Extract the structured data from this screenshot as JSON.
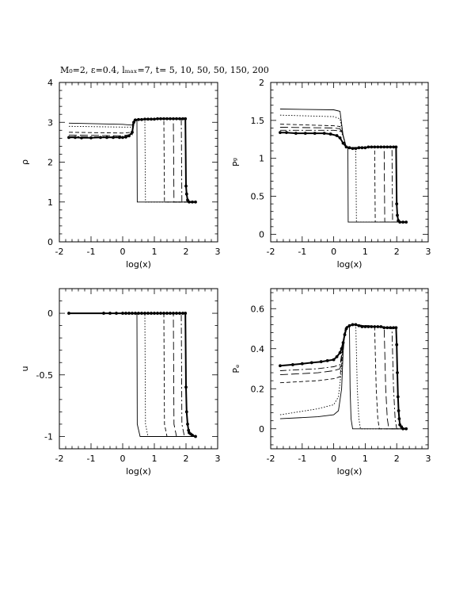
{
  "figure": {
    "title": "M₀=2, ε=0.4, lₘₐₓ=7, t= 5, 10, 50, 50, 150, 200"
  },
  "chart_data": [
    {
      "type": "line",
      "xlabel": "log(x)",
      "ylabel": "ρ",
      "xlim": [
        -2,
        3
      ],
      "ylim": [
        0,
        4
      ],
      "xticks": [
        -2,
        -1,
        0,
        1,
        2,
        3
      ],
      "yticks": [
        0,
        1,
        2,
        3,
        4
      ],
      "grid": false,
      "series": [
        {
          "style": "solid",
          "x": [
            -1.7,
            0.0,
            0.3,
            0.36,
            0.42,
            0.45,
            0.46,
            2.0,
            2.3
          ],
          "y": [
            2.98,
            2.95,
            2.93,
            3.05,
            3.06,
            3.06,
            1.0,
            1.0,
            1.0
          ]
        },
        {
          "style": "dotted",
          "x": [
            -1.7,
            0.0,
            0.3,
            0.36,
            0.6,
            0.7,
            0.72,
            2.0,
            2.3
          ],
          "y": [
            2.9,
            2.88,
            2.88,
            3.05,
            3.07,
            3.07,
            1.0,
            1.0,
            1.0
          ]
        },
        {
          "style": "dashed",
          "x": [
            -1.7,
            0.0,
            0.3,
            0.36,
            1.2,
            1.3,
            1.32,
            2.0,
            2.3
          ],
          "y": [
            2.75,
            2.73,
            2.75,
            3.06,
            3.08,
            3.08,
            1.0,
            1.0,
            1.0
          ]
        },
        {
          "style": "longdash",
          "x": [
            -1.7,
            0.0,
            0.3,
            0.36,
            1.5,
            1.6,
            1.62,
            2.0,
            2.3
          ],
          "y": [
            2.68,
            2.66,
            2.7,
            3.06,
            3.09,
            3.09,
            1.0,
            1.0,
            1.0
          ]
        },
        {
          "style": "dashdot",
          "x": [
            -1.7,
            0.0,
            0.3,
            0.36,
            1.75,
            1.85,
            1.87,
            2.0,
            2.3
          ],
          "y": [
            2.64,
            2.63,
            2.68,
            3.07,
            3.09,
            3.09,
            1.0,
            1.0,
            1.0
          ]
        },
        {
          "style": "points",
          "x": [
            -1.7,
            -1.5,
            -1.3,
            -1.0,
            -0.7,
            -0.5,
            -0.3,
            -0.1,
            0.0,
            0.1,
            0.2,
            0.3,
            0.35,
            0.4,
            0.5,
            0.6,
            0.7,
            0.8,
            0.9,
            1.0,
            1.1,
            1.2,
            1.3,
            1.4,
            1.5,
            1.6,
            1.7,
            1.8,
            1.9,
            1.98,
            2.0,
            2.02,
            2.05,
            2.1,
            2.2,
            2.3
          ],
          "y": [
            2.62,
            2.62,
            2.61,
            2.61,
            2.62,
            2.62,
            2.62,
            2.62,
            2.62,
            2.63,
            2.66,
            2.75,
            3.0,
            3.06,
            3.07,
            3.07,
            3.08,
            3.08,
            3.08,
            3.08,
            3.09,
            3.09,
            3.09,
            3.09,
            3.09,
            3.09,
            3.09,
            3.09,
            3.09,
            3.09,
            1.4,
            1.2,
            1.05,
            1.0,
            1.0,
            1.0
          ]
        }
      ]
    },
    {
      "type": "line",
      "xlabel": "log(x)",
      "ylabel": "Pᵍ",
      "xlim": [
        -2,
        3
      ],
      "ylim": [
        -0.1,
        2
      ],
      "xticks": [
        -2,
        -1,
        0,
        1,
        2,
        3
      ],
      "yticks": [
        0,
        0.5,
        1,
        1.5,
        2
      ],
      "grid": false,
      "series": [
        {
          "style": "solid",
          "x": [
            -1.7,
            0.0,
            0.2,
            0.3,
            0.4,
            0.45,
            0.46,
            2.0,
            2.3
          ],
          "y": [
            1.65,
            1.64,
            1.62,
            1.3,
            1.15,
            1.15,
            0.16,
            0.16,
            0.16
          ]
        },
        {
          "style": "dotted",
          "x": [
            -1.7,
            0.0,
            0.2,
            0.3,
            0.4,
            0.7,
            0.72,
            2.0,
            2.3
          ],
          "y": [
            1.57,
            1.55,
            1.52,
            1.3,
            1.14,
            1.14,
            0.16,
            0.16,
            0.16
          ]
        },
        {
          "style": "dashed",
          "x": [
            -1.7,
            0.0,
            0.2,
            0.3,
            0.4,
            1.3,
            1.32,
            2.0,
            2.3
          ],
          "y": [
            1.45,
            1.43,
            1.42,
            1.3,
            1.14,
            1.15,
            0.16,
            0.16,
            0.16
          ]
        },
        {
          "style": "longdash",
          "x": [
            -1.7,
            0.0,
            0.2,
            0.3,
            0.4,
            1.6,
            1.62,
            2.0,
            2.3
          ],
          "y": [
            1.41,
            1.4,
            1.39,
            1.3,
            1.14,
            1.15,
            0.16,
            0.16,
            0.16
          ]
        },
        {
          "style": "dashdot",
          "x": [
            -1.7,
            0.0,
            0.2,
            0.3,
            0.4,
            1.85,
            1.87,
            2.0,
            2.3
          ],
          "y": [
            1.37,
            1.37,
            1.36,
            1.3,
            1.14,
            1.15,
            0.16,
            0.16,
            0.16
          ]
        },
        {
          "style": "points",
          "x": [
            -1.7,
            -1.5,
            -1.2,
            -0.9,
            -0.6,
            -0.3,
            -0.1,
            0.1,
            0.2,
            0.3,
            0.4,
            0.5,
            0.6,
            0.7,
            0.8,
            0.9,
            1.0,
            1.1,
            1.2,
            1.3,
            1.4,
            1.5,
            1.6,
            1.7,
            1.8,
            1.9,
            1.98,
            2.0,
            2.02,
            2.05,
            2.1,
            2.2,
            2.3
          ],
          "y": [
            1.34,
            1.34,
            1.33,
            1.33,
            1.33,
            1.33,
            1.32,
            1.3,
            1.27,
            1.2,
            1.15,
            1.14,
            1.13,
            1.13,
            1.14,
            1.14,
            1.14,
            1.15,
            1.15,
            1.15,
            1.15,
            1.15,
            1.15,
            1.15,
            1.15,
            1.15,
            1.15,
            0.4,
            0.25,
            0.18,
            0.16,
            0.16,
            0.16
          ]
        }
      ]
    },
    {
      "type": "line",
      "xlabel": "log(x)",
      "ylabel": "u",
      "xlim": [
        -2,
        3
      ],
      "ylim": [
        -1.1,
        0.2
      ],
      "xticks": [
        -2,
        -1,
        0,
        1,
        2,
        3
      ],
      "yticks": [
        -1,
        -0.5,
        0
      ],
      "grid": false,
      "series": [
        {
          "style": "solid",
          "x": [
            -1.7,
            0.3,
            0.45,
            0.46,
            0.55,
            2.0,
            2.3
          ],
          "y": [
            0.0,
            0.0,
            0.0,
            -0.9,
            -1.0,
            -1.0,
            -1.0
          ]
        },
        {
          "style": "dotted",
          "x": [
            -1.7,
            0.3,
            0.7,
            0.72,
            0.8,
            2.0,
            2.3
          ],
          "y": [
            0.0,
            0.0,
            0.0,
            -0.9,
            -1.0,
            -1.0,
            -1.0
          ]
        },
        {
          "style": "dashed",
          "x": [
            -1.7,
            0.3,
            1.3,
            1.32,
            1.4,
            2.0,
            2.3
          ],
          "y": [
            0.0,
            0.0,
            0.0,
            -0.9,
            -1.0,
            -1.0,
            -1.0
          ]
        },
        {
          "style": "longdash",
          "x": [
            -1.7,
            0.3,
            1.6,
            1.62,
            1.7,
            2.0,
            2.3
          ],
          "y": [
            0.0,
            0.0,
            0.0,
            -0.9,
            -1.0,
            -1.0,
            -1.0
          ]
        },
        {
          "style": "dashdot",
          "x": [
            -1.7,
            0.3,
            1.85,
            1.87,
            1.95,
            2.0,
            2.3
          ],
          "y": [
            0.0,
            0.0,
            0.0,
            -0.9,
            -1.0,
            -1.0,
            -1.0
          ]
        },
        {
          "style": "points",
          "x": [
            -1.7,
            -0.6,
            -0.4,
            -0.2,
            0.0,
            0.1,
            0.2,
            0.3,
            0.4,
            0.5,
            0.6,
            0.7,
            0.8,
            0.9,
            1.0,
            1.1,
            1.2,
            1.3,
            1.4,
            1.5,
            1.6,
            1.7,
            1.8,
            1.9,
            1.98,
            2.0,
            2.02,
            2.05,
            2.08,
            2.1,
            2.15,
            2.2,
            2.3
          ],
          "y": [
            0.0,
            0.0,
            0.0,
            0.0,
            0.0,
            0.0,
            0.0,
            0.0,
            0.0,
            0.0,
            0.0,
            0.0,
            0.0,
            0.0,
            0.0,
            0.0,
            0.0,
            0.0,
            0.0,
            0.0,
            0.0,
            0.0,
            0.0,
            0.0,
            0.0,
            -0.6,
            -0.8,
            -0.9,
            -0.95,
            -0.97,
            -0.98,
            -0.99,
            -1.0
          ]
        }
      ]
    },
    {
      "type": "line",
      "xlabel": "log(x)",
      "ylabel": "Pₑ",
      "xlim": [
        -2,
        3
      ],
      "ylim": [
        -0.1,
        0.7
      ],
      "xticks": [
        -2,
        -1,
        0,
        1,
        2,
        3
      ],
      "yticks": [
        0,
        0.2,
        0.4,
        0.6
      ],
      "grid": false,
      "series": [
        {
          "style": "solid",
          "x": [
            -1.7,
            -0.5,
            0.0,
            0.15,
            0.25,
            0.3,
            0.35,
            0.4,
            0.45,
            0.5,
            0.52,
            0.55,
            0.6,
            2.0,
            2.3
          ],
          "y": [
            0.05,
            0.06,
            0.07,
            0.09,
            0.2,
            0.38,
            0.48,
            0.5,
            0.51,
            0.51,
            0.2,
            0.05,
            0.0,
            0.0,
            0.0
          ]
        },
        {
          "style": "dotted",
          "x": [
            -1.7,
            -0.5,
            0.0,
            0.15,
            0.25,
            0.3,
            0.35,
            0.4,
            0.6,
            0.7,
            0.75,
            0.8,
            0.85,
            2.0,
            2.3
          ],
          "y": [
            0.07,
            0.1,
            0.12,
            0.16,
            0.3,
            0.42,
            0.49,
            0.51,
            0.52,
            0.52,
            0.2,
            0.05,
            0.0,
            0.0,
            0.0
          ]
        },
        {
          "style": "dashed",
          "x": [
            -1.7,
            -0.5,
            0.0,
            0.2,
            0.3,
            0.35,
            0.4,
            0.6,
            1.3,
            1.35,
            1.4,
            1.45,
            2.0,
            2.3
          ],
          "y": [
            0.23,
            0.24,
            0.25,
            0.26,
            0.4,
            0.48,
            0.51,
            0.52,
            0.51,
            0.2,
            0.05,
            0.0,
            0.0,
            0.0
          ]
        },
        {
          "style": "longdash",
          "x": [
            -1.7,
            -0.5,
            0.0,
            0.2,
            0.3,
            0.35,
            0.4,
            0.6,
            1.6,
            1.65,
            1.7,
            1.75,
            2.0,
            2.3
          ],
          "y": [
            0.27,
            0.28,
            0.29,
            0.3,
            0.42,
            0.48,
            0.51,
            0.52,
            0.51,
            0.2,
            0.05,
            0.0,
            0.0,
            0.0
          ]
        },
        {
          "style": "dashdot",
          "x": [
            -1.7,
            -0.5,
            0.0,
            0.2,
            0.3,
            0.35,
            0.4,
            0.6,
            1.85,
            1.9,
            1.95,
            2.0,
            2.3
          ],
          "y": [
            0.29,
            0.3,
            0.31,
            0.32,
            0.42,
            0.48,
            0.51,
            0.52,
            0.5,
            0.2,
            0.05,
            0.0,
            0.0
          ]
        },
        {
          "style": "points",
          "x": [
            -1.7,
            -1.3,
            -1.0,
            -0.7,
            -0.4,
            -0.2,
            0.0,
            0.1,
            0.2,
            0.25,
            0.3,
            0.35,
            0.4,
            0.5,
            0.6,
            0.7,
            0.8,
            0.9,
            1.0,
            1.1,
            1.2,
            1.3,
            1.4,
            1.5,
            1.6,
            1.7,
            1.8,
            1.9,
            1.98,
            2.0,
            2.02,
            2.04,
            2.06,
            2.08,
            2.1,
            2.15,
            2.2,
            2.3
          ],
          "y": [
            0.315,
            0.32,
            0.325,
            0.33,
            0.335,
            0.34,
            0.345,
            0.36,
            0.38,
            0.4,
            0.43,
            0.47,
            0.5,
            0.515,
            0.52,
            0.52,
            0.515,
            0.51,
            0.51,
            0.51,
            0.51,
            0.51,
            0.51,
            0.51,
            0.505,
            0.505,
            0.505,
            0.505,
            0.505,
            0.42,
            0.28,
            0.16,
            0.09,
            0.05,
            0.02,
            0.01,
            0.0,
            0.0
          ]
        }
      ]
    }
  ]
}
